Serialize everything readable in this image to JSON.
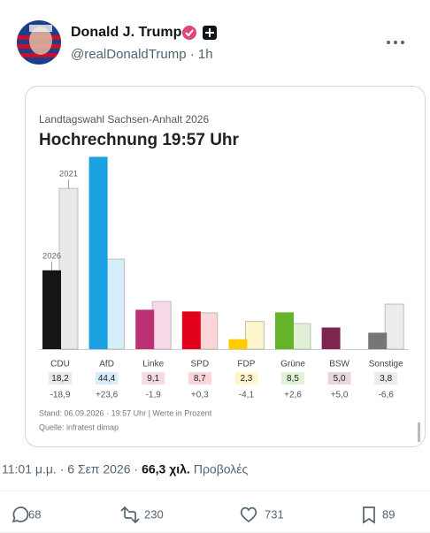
{
  "tweet": {
    "author": "Donald J. Trump",
    "handle_line": "@realDonaldTrump · 1h",
    "timestamp": "11:01 μ.μ. · 6 Σεπ 2026 ·",
    "views": "66,3 χιλ.",
    "views_label": "Προβολές",
    "replies": 68,
    "reposts": 230,
    "likes": 731,
    "bookmarks": 89
  },
  "chart_data": {
    "type": "bar",
    "title": "Landtagswahl Sachsen-Anhalt 2026",
    "subtitle": "Hochrechnung 19:57 Uhr",
    "categories": [
      "CDU",
      "AfD",
      "Linke",
      "SPD",
      "FDP",
      "Grüne",
      "BSW",
      "Sonstige"
    ],
    "colors": [
      "#151515",
      "#1ba1e2",
      "#be3075",
      "#e2001a",
      "#ffcc00",
      "#64b32a",
      "#7d254f",
      "#767676"
    ],
    "light_colors": [
      "#e9e9e9",
      "#d6eefb",
      "#f6d9e6",
      "#fbd5d7",
      "#fff5cc",
      "#e0f1d5",
      "#ead6df",
      "#ececec"
    ],
    "series": [
      {
        "name": "2026",
        "values": [
          18.2,
          44.4,
          9.1,
          8.7,
          2.3,
          8.5,
          5.0,
          3.8
        ],
        "value_labels": [
          "18,2",
          "44,4",
          "9,1",
          "8,7",
          "2,3",
          "8,5",
          "5,0",
          "3,8"
        ]
      },
      {
        "name": "2021",
        "values": [
          37.1,
          20.8,
          11.0,
          8.4,
          6.4,
          5.9,
          0,
          10.4
        ]
      }
    ],
    "change_labels": [
      "-18,9",
      "+23,6",
      "-1,9",
      "+0,3",
      "-4,1",
      "+2,6",
      "+5,0",
      "-6,6"
    ],
    "notes": [
      "Stand: 06.09.2026 · 19:57 Uhr | Werte in Prozent",
      "Quelle: infratest dimap"
    ]
  }
}
